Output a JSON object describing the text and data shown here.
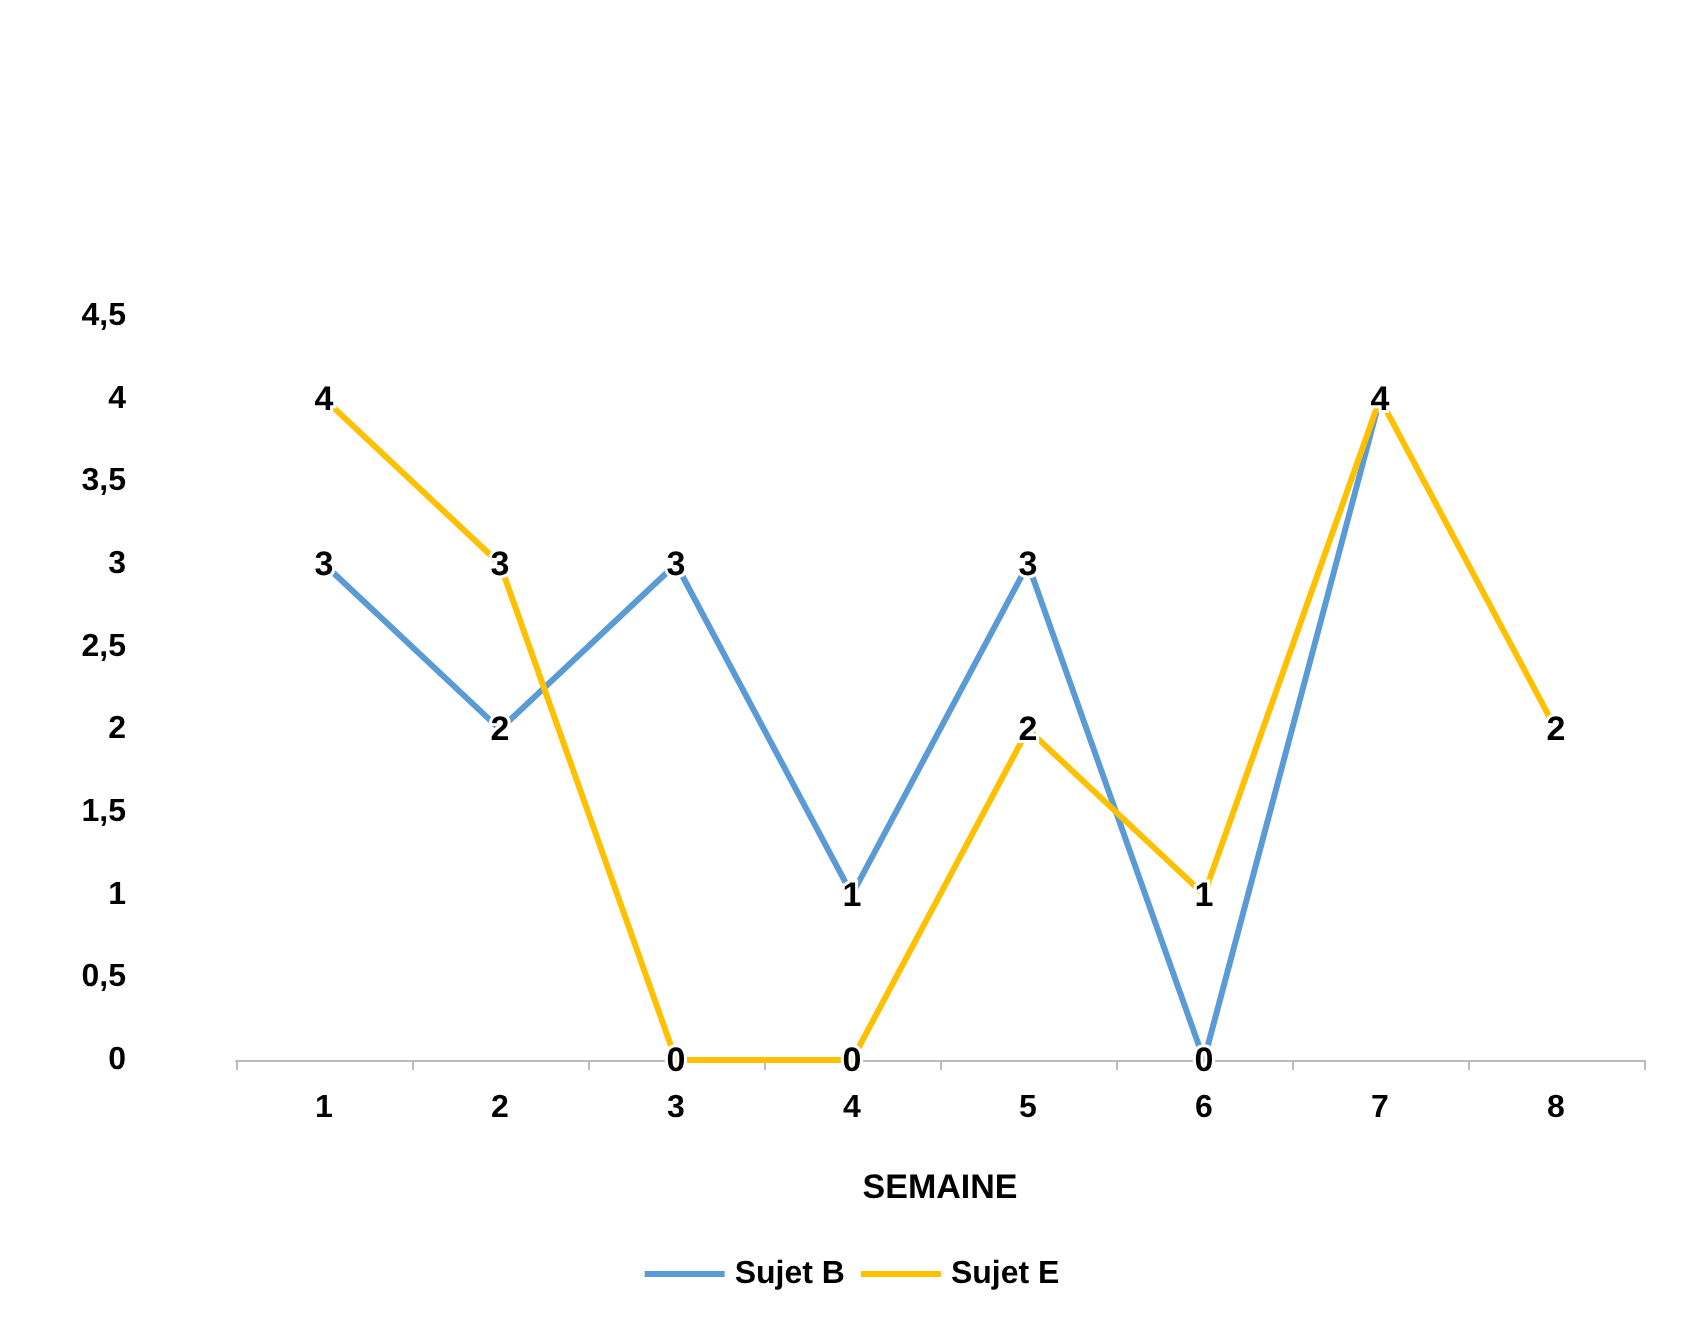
{
  "chart_data": {
    "type": "line",
    "xlabel": "SEMAINE",
    "categories": [
      "1",
      "2",
      "3",
      "4",
      "5",
      "6",
      "7",
      "8"
    ],
    "series": [
      {
        "name": "Sujet B",
        "color": "#5b9bd5",
        "values": [
          3,
          2,
          3,
          1,
          3,
          0,
          4,
          null
        ],
        "value_labels": [
          "3",
          "2",
          "3",
          "1",
          "3",
          "0",
          "4",
          null
        ]
      },
      {
        "name": "Sujet E",
        "color": "#ffc000",
        "values": [
          4,
          3,
          0,
          0,
          2,
          1,
          4,
          2
        ],
        "value_labels": [
          "4",
          "3",
          "0",
          "0",
          "2",
          "1",
          null,
          "2"
        ]
      }
    ],
    "ylim": [
      0,
      4.5
    ],
    "yticks": [
      0,
      {
        "value": 0.5,
        "label": "0,5"
      },
      1,
      {
        "value": 1.5,
        "label": "1,5"
      },
      2,
      {
        "value": 2.5,
        "label": "2,5"
      },
      3,
      {
        "value": 3.5,
        "label": "3,5"
      },
      4,
      {
        "value": 4.5,
        "label": "4,5"
      }
    ],
    "grid": false,
    "legend": "bottom",
    "marker": "none",
    "line_style": "solid"
  }
}
